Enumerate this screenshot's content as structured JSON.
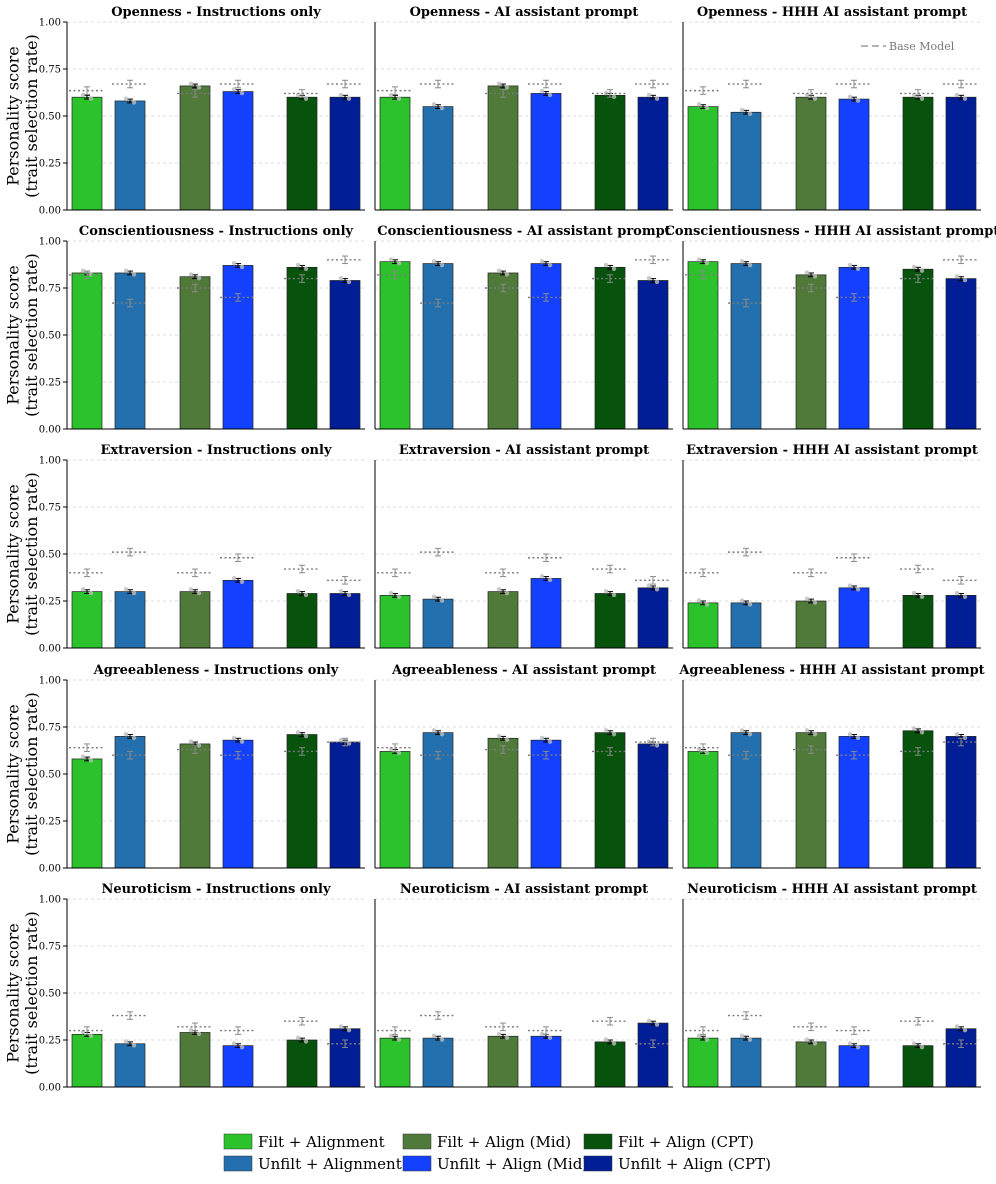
{
  "chart_data": {
    "type": "bar",
    "layout": "5 rows (traits) x 3 columns (prompt conditions)",
    "ylabel": "Personality score\n(trait selection rate)",
    "ylim": [
      0,
      1.0
    ],
    "yticks": [
      "0.00",
      "0.25",
      "0.50",
      "0.75",
      "1.00"
    ],
    "grid": "horizontal dashed",
    "traits": [
      "Openness",
      "Conscientiousness",
      "Extraversion",
      "Agreeableness",
      "Neuroticism"
    ],
    "conditions": [
      "Instructions only",
      "AI assistant prompt",
      "HHH AI assistant prompt"
    ],
    "series": [
      {
        "name": "Filt + Alignment",
        "color": "#2bc22b"
      },
      {
        "name": "Unfilt + Alignment",
        "color": "#2470ae"
      },
      {
        "name": "Filt + Align (Mid)",
        "color": "#4f7a3a"
      },
      {
        "name": "Unfilt + Align (Mid)",
        "color": "#1440ff"
      },
      {
        "name": "Filt + Align (CPT)",
        "color": "#07520d"
      },
      {
        "name": "Unfilt + Align (CPT)",
        "color": "#021e96"
      }
    ],
    "base_model_label": "Base Model",
    "base_model_values": {
      "Openness": [
        0.635,
        0.67,
        0.62,
        0.67,
        0.62,
        0.67
      ],
      "Conscientiousness": [
        0.82,
        0.67,
        0.75,
        0.7,
        0.8,
        0.9
      ],
      "Extraversion": [
        0.4,
        0.51,
        0.4,
        0.48,
        0.42,
        0.36
      ],
      "Agreeableness": [
        0.64,
        0.6,
        0.63,
        0.6,
        0.62,
        0.67
      ],
      "Neuroticism": [
        0.3,
        0.38,
        0.32,
        0.3,
        0.35,
        0.23
      ]
    },
    "panels": [
      {
        "title": "Openness - Instructions only",
        "values": [
          0.6,
          0.58,
          0.66,
          0.63,
          0.6,
          0.6
        ]
      },
      {
        "title": "Openness - AI assistant prompt",
        "values": [
          0.6,
          0.55,
          0.66,
          0.62,
          0.61,
          0.6
        ]
      },
      {
        "title": "Openness - HHH AI assistant prompt",
        "values": [
          0.55,
          0.52,
          0.6,
          0.59,
          0.6,
          0.6
        ]
      },
      {
        "title": "Conscientiousness - Instructions only",
        "values": [
          0.83,
          0.83,
          0.81,
          0.87,
          0.86,
          0.79
        ]
      },
      {
        "title": "Conscientiousness - AI assistant prompt",
        "values": [
          0.89,
          0.88,
          0.83,
          0.88,
          0.86,
          0.79
        ]
      },
      {
        "title": "Conscientiousness - HHH AI assistant prompt",
        "values": [
          0.89,
          0.88,
          0.82,
          0.86,
          0.85,
          0.8
        ]
      },
      {
        "title": "Extraversion - Instructions only",
        "values": [
          0.3,
          0.3,
          0.3,
          0.36,
          0.29,
          0.29
        ]
      },
      {
        "title": "Extraversion - AI assistant prompt",
        "values": [
          0.28,
          0.26,
          0.3,
          0.37,
          0.29,
          0.32
        ]
      },
      {
        "title": "Extraversion - HHH AI assistant prompt",
        "values": [
          0.24,
          0.24,
          0.25,
          0.32,
          0.28,
          0.28
        ]
      },
      {
        "title": "Agreeableness - Instructions only",
        "values": [
          0.58,
          0.7,
          0.66,
          0.68,
          0.71,
          0.67
        ]
      },
      {
        "title": "Agreeableness - AI assistant prompt",
        "values": [
          0.62,
          0.72,
          0.69,
          0.68,
          0.72,
          0.66
        ]
      },
      {
        "title": "Agreeableness - HHH AI assistant prompt",
        "values": [
          0.62,
          0.72,
          0.72,
          0.7,
          0.73,
          0.7
        ]
      },
      {
        "title": "Neuroticism - Instructions only",
        "values": [
          0.28,
          0.23,
          0.29,
          0.22,
          0.25,
          0.31
        ]
      },
      {
        "title": "Neuroticism - AI assistant prompt",
        "values": [
          0.26,
          0.26,
          0.27,
          0.27,
          0.24,
          0.34
        ]
      },
      {
        "title": "Neuroticism - HHH AI assistant prompt",
        "values": [
          0.26,
          0.26,
          0.24,
          0.22,
          0.22,
          0.31
        ]
      }
    ]
  }
}
